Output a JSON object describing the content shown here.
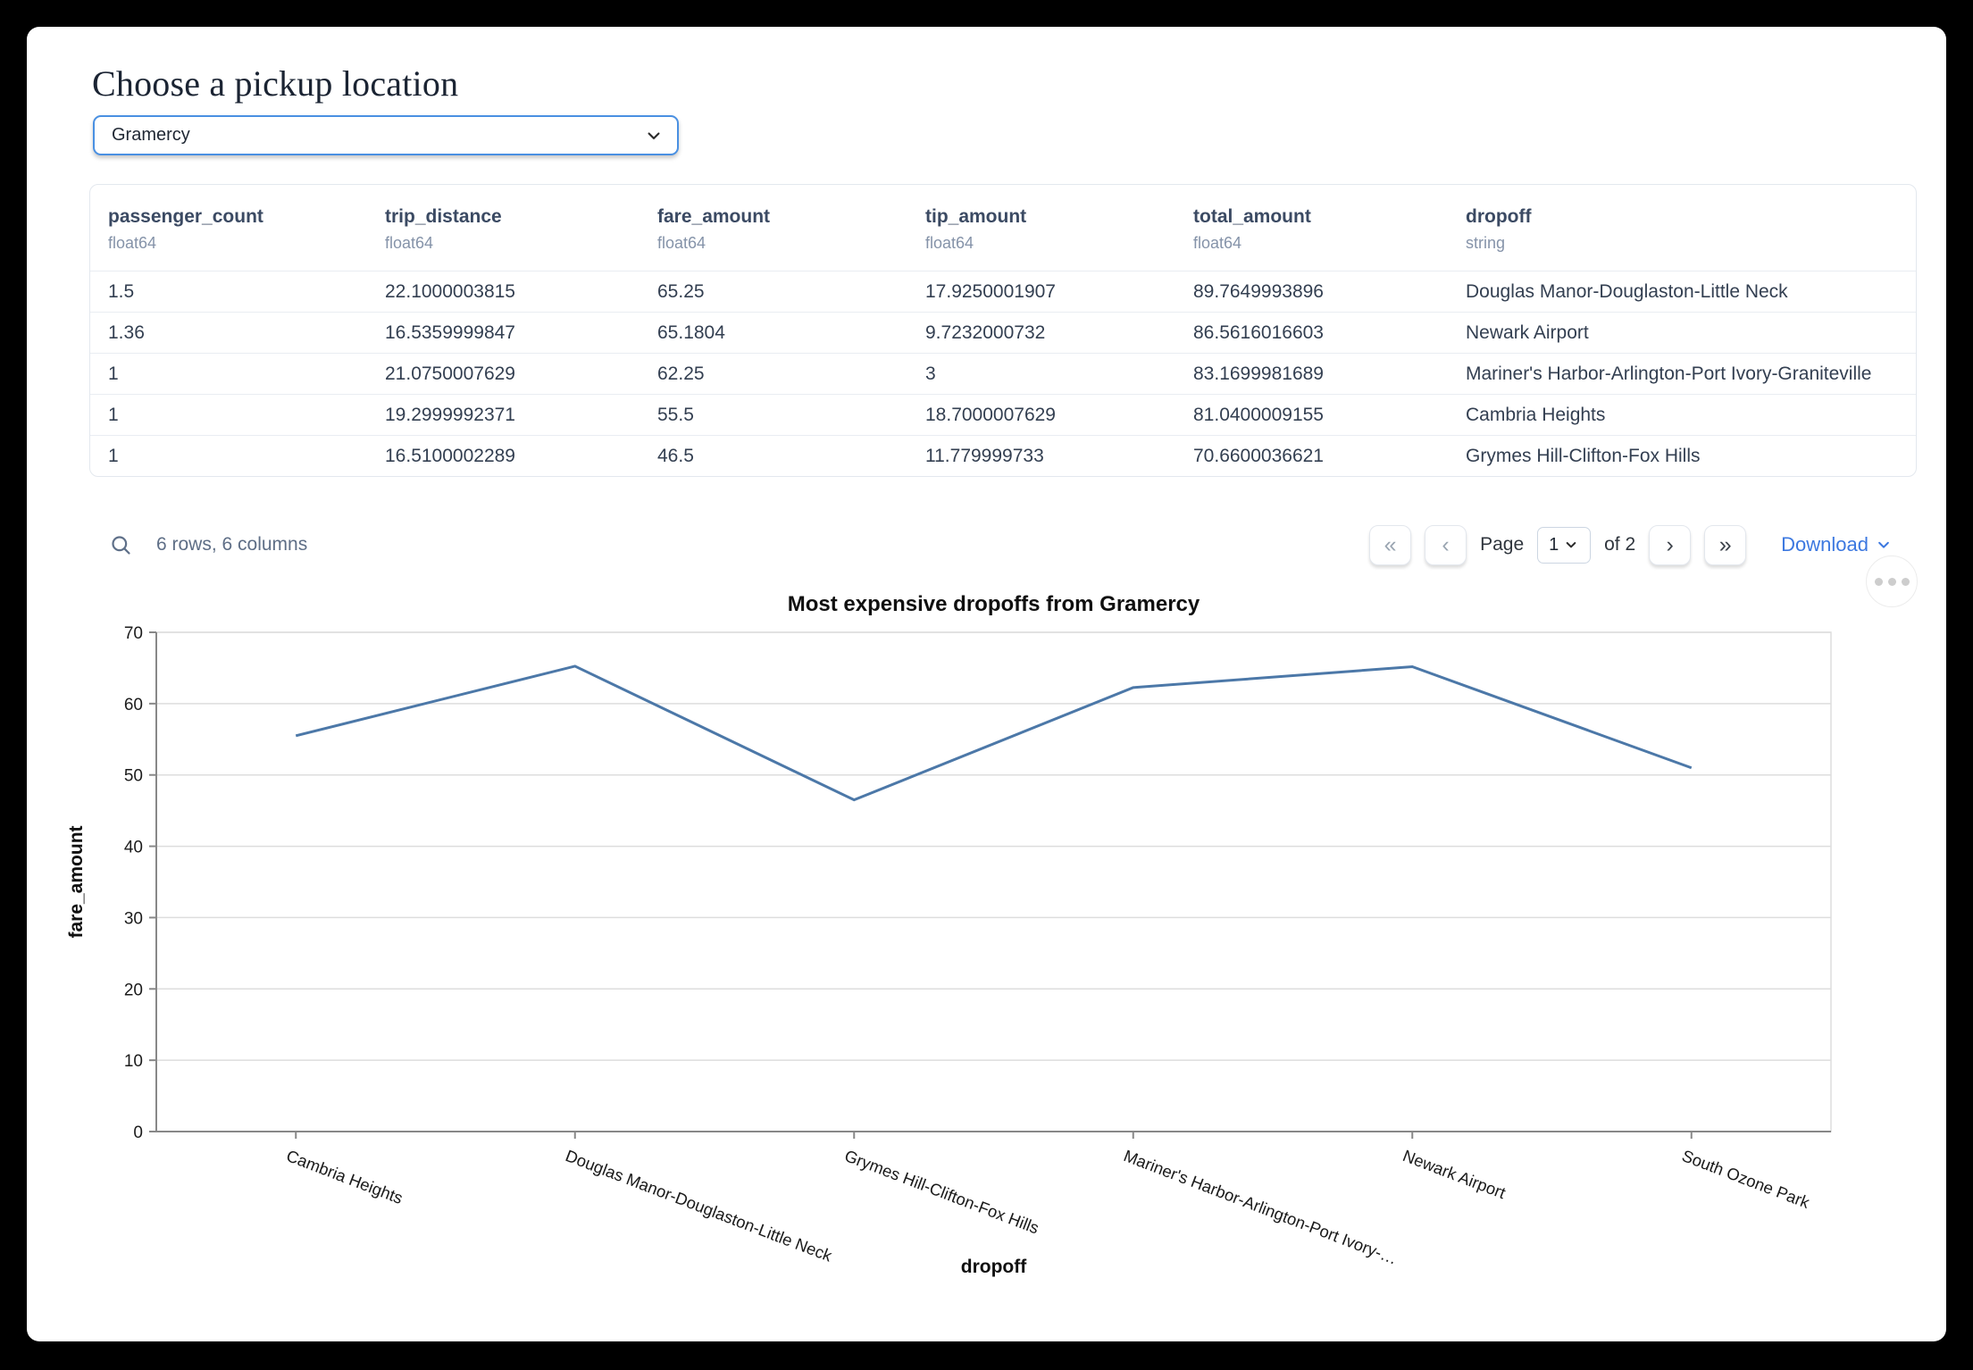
{
  "page": {
    "title": "Choose a pickup location"
  },
  "picker": {
    "value": "Gramercy"
  },
  "table": {
    "columns": [
      {
        "name": "passenger_count",
        "dtype": "float64"
      },
      {
        "name": "trip_distance",
        "dtype": "float64"
      },
      {
        "name": "fare_amount",
        "dtype": "float64"
      },
      {
        "name": "tip_amount",
        "dtype": "float64"
      },
      {
        "name": "total_amount",
        "dtype": "float64"
      },
      {
        "name": "dropoff",
        "dtype": "string"
      }
    ],
    "rows": [
      [
        "1.5",
        "22.1000003815",
        "65.25",
        "17.9250001907",
        "89.7649993896",
        "Douglas Manor-Douglaston-Little Neck"
      ],
      [
        "1.36",
        "16.5359999847",
        "65.1804",
        "9.7232000732",
        "86.5616016603",
        "Newark Airport"
      ],
      [
        "1",
        "21.0750007629",
        "62.25",
        "3",
        "83.1699981689",
        "Mariner's Harbor-Arlington-Port Ivory-Graniteville"
      ],
      [
        "1",
        "19.2999992371",
        "55.5",
        "18.7000007629",
        "81.0400009155",
        "Cambria Heights"
      ],
      [
        "1",
        "16.5100002289",
        "46.5",
        "11.779999733",
        "70.6600036621",
        "Grymes Hill-Clifton-Fox Hills"
      ]
    ],
    "summary": "6 rows, 6 columns",
    "pagination": {
      "first": "«",
      "prev": "‹",
      "next": "›",
      "last": "»",
      "page_label": "Page",
      "current_page": "1",
      "total_label": "of 2"
    },
    "download_label": "Download"
  },
  "chart_data": {
    "type": "line",
    "title": "Most expensive dropoffs from Gramercy",
    "xlabel": "dropoff",
    "ylabel": "fare_amount",
    "categories": [
      "Cambria Heights",
      "Douglas Manor-Douglaston-Little Neck",
      "Grymes Hill-Clifton-Fox Hills",
      "Mariner's Harbor-Arlington-Port Ivory-…",
      "Newark Airport",
      "South Ozone Park"
    ],
    "values": [
      55.5,
      65.25,
      46.5,
      62.25,
      65.1804,
      51
    ],
    "ylim": [
      0,
      70
    ],
    "ytick_step": 10,
    "grid": true,
    "legend": "none",
    "line_color": "#4c78a8"
  },
  "colors": {
    "accent_blue": "#4a90e2",
    "link_blue": "#3c78e0",
    "line_blue": "#4c78a8"
  }
}
